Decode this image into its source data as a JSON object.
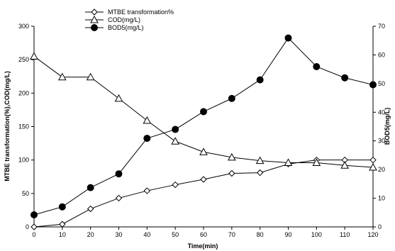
{
  "chart_data": {
    "type": "line",
    "title": "",
    "xlabel": "Time(min)",
    "ylabel_left": "MTBE transformation(%),COD(mg/L)",
    "ylabel_right": "BOD5(mg/L)",
    "x": [
      0,
      10,
      20,
      30,
      40,
      50,
      60,
      70,
      80,
      90,
      100,
      110,
      120
    ],
    "xlim": [
      0,
      120
    ],
    "x_ticks": [
      0,
      10,
      20,
      30,
      40,
      50,
      60,
      70,
      80,
      90,
      100,
      110,
      120
    ],
    "ylim_left": [
      0,
      300
    ],
    "y_ticks_left": [
      0,
      50,
      100,
      150,
      200,
      250,
      300
    ],
    "ylim_right": [
      0,
      70
    ],
    "y_ticks_right": [
      0,
      10,
      20,
      30,
      40,
      50,
      60,
      70
    ],
    "grid": false,
    "legend_position": "top-left",
    "series": [
      {
        "name": "MTBE transformation%",
        "axis": "left",
        "marker": "diamond-open",
        "values": [
          0,
          4,
          27,
          43,
          54,
          63,
          71,
          80,
          81,
          94,
          100,
          100,
          100
        ]
      },
      {
        "name": "COD(mg/L)",
        "axis": "left",
        "marker": "triangle-open",
        "values": [
          255,
          224,
          224,
          192,
          159,
          128,
          112,
          104,
          99,
          96,
          96,
          92,
          89
        ]
      },
      {
        "name": "BOD5(mg/L)",
        "axis": "right",
        "marker": "circle-filled",
        "values": [
          4.2,
          7,
          13.7,
          18.5,
          30.9,
          34,
          40.2,
          44.8,
          51.3,
          65.9,
          55.9,
          52,
          49.6
        ]
      }
    ]
  }
}
